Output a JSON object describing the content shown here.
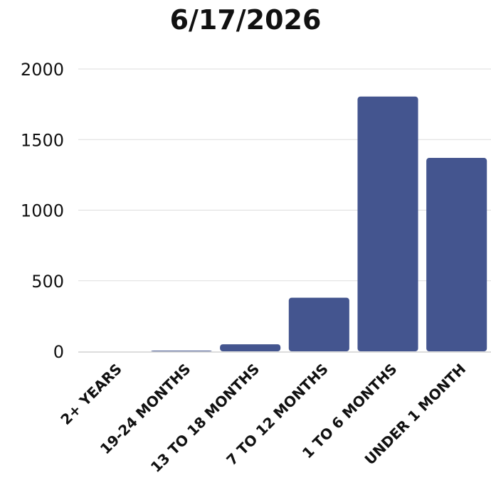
{
  "chart_data": {
    "type": "bar",
    "title": "6/17/2026",
    "xlabel": "",
    "ylabel": "",
    "ylim": [
      0,
      2000
    ],
    "yticks": [
      0,
      500,
      1000,
      1500,
      2000
    ],
    "categories": [
      "2+ YEARS",
      "19-24 MONTHS",
      "13 TO 18 MONTHS",
      "7 TO 12 MONTHS",
      "1 TO 6 MONTHS",
      "UNDER 1 MONTH"
    ],
    "values": [
      0,
      5,
      50,
      380,
      1805,
      1370
    ],
    "grid": true,
    "legend": "none",
    "colors": {
      "bar": "#44558f",
      "grid": "#dddddd",
      "axis": "#bbbbbb",
      "text": "#111111"
    }
  }
}
